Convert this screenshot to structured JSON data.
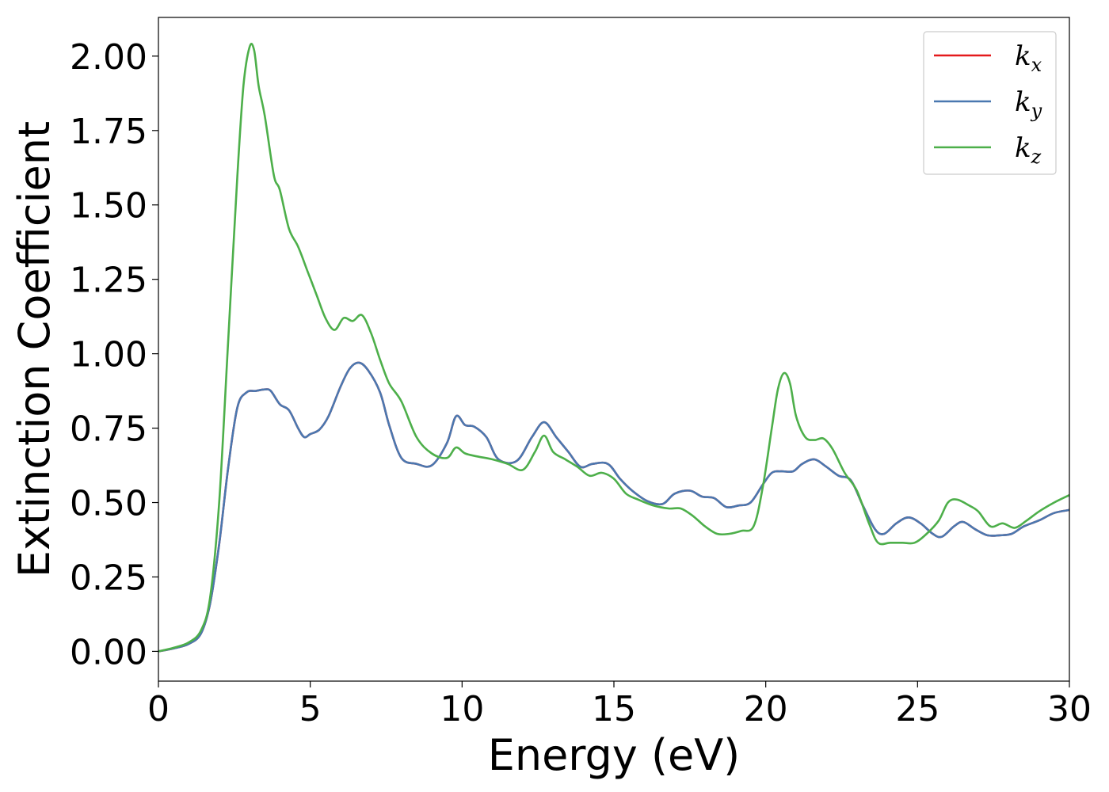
{
  "chart_data": {
    "type": "line",
    "xlabel": "Energy (eV)",
    "ylabel": "Extinction Coefficient",
    "xlim": [
      0,
      30
    ],
    "ylim": [
      -0.1,
      2.13
    ],
    "x_ticks": [
      0,
      5,
      10,
      15,
      20,
      25,
      30
    ],
    "x_tick_labels": [
      "0",
      "5",
      "10",
      "15",
      "20",
      "25",
      "30"
    ],
    "y_ticks": [
      0.0,
      0.25,
      0.5,
      0.75,
      1.0,
      1.25,
      1.5,
      1.75,
      2.0
    ],
    "y_tick_labels": [
      "0.00",
      "0.25",
      "0.50",
      "0.75",
      "1.00",
      "1.25",
      "1.50",
      "1.75",
      "2.00"
    ],
    "grid": false,
    "legend": {
      "position": "top-right",
      "entries": [
        {
          "base": "k",
          "sub": "x",
          "color": "#e41a1c"
        },
        {
          "base": "k",
          "sub": "y",
          "color": "#4a78b0"
        },
        {
          "base": "k",
          "sub": "z",
          "color": "#4daf4a"
        }
      ]
    },
    "series": [
      {
        "name": "k_x",
        "color": "#e41a1c",
        "x": [
          0,
          0.5,
          1.0,
          1.4,
          1.7,
          2.0,
          2.3,
          2.6,
          2.9,
          3.2,
          3.5,
          3.7,
          4.0,
          4.3,
          4.6,
          4.8,
          5.0,
          5.3,
          5.6,
          6.0,
          6.3,
          6.6,
          6.9,
          7.3,
          7.6,
          8.0,
          8.5,
          9.0,
          9.5,
          9.8,
          10.1,
          10.4,
          10.8,
          11.2,
          11.8,
          12.3,
          12.7,
          13.1,
          13.5,
          13.9,
          14.3,
          14.8,
          15.2,
          15.6,
          16.1,
          16.6,
          17.0,
          17.5,
          17.9,
          18.3,
          18.7,
          19.1,
          19.5,
          19.9,
          20.2,
          20.5,
          20.9,
          21.2,
          21.6,
          22.0,
          22.4,
          22.8,
          23.2,
          23.6,
          23.9,
          24.3,
          24.7,
          25.1,
          25.5,
          25.8,
          26.2,
          26.5,
          26.9,
          27.3,
          27.7,
          28.1,
          28.5,
          29.0,
          29.5,
          30.0
        ],
        "y": [
          0.0,
          0.01,
          0.025,
          0.06,
          0.16,
          0.36,
          0.62,
          0.82,
          0.87,
          0.875,
          0.88,
          0.875,
          0.83,
          0.81,
          0.75,
          0.72,
          0.73,
          0.745,
          0.79,
          0.89,
          0.95,
          0.97,
          0.945,
          0.87,
          0.76,
          0.65,
          0.63,
          0.625,
          0.7,
          0.79,
          0.76,
          0.755,
          0.72,
          0.645,
          0.64,
          0.72,
          0.77,
          0.72,
          0.67,
          0.62,
          0.63,
          0.63,
          0.58,
          0.54,
          0.505,
          0.495,
          0.53,
          0.54,
          0.52,
          0.515,
          0.485,
          0.49,
          0.5,
          0.56,
          0.6,
          0.605,
          0.605,
          0.63,
          0.645,
          0.62,
          0.59,
          0.575,
          0.49,
          0.41,
          0.395,
          0.43,
          0.45,
          0.43,
          0.395,
          0.385,
          0.42,
          0.435,
          0.41,
          0.39,
          0.39,
          0.395,
          0.42,
          0.44,
          0.465,
          0.475
        ]
      },
      {
        "name": "k_y",
        "color": "#4a78b0",
        "x": [
          0,
          0.5,
          1.0,
          1.4,
          1.7,
          2.0,
          2.3,
          2.6,
          2.9,
          3.2,
          3.5,
          3.7,
          4.0,
          4.3,
          4.6,
          4.8,
          5.0,
          5.3,
          5.6,
          6.0,
          6.3,
          6.6,
          6.9,
          7.3,
          7.6,
          8.0,
          8.5,
          9.0,
          9.5,
          9.8,
          10.1,
          10.4,
          10.8,
          11.2,
          11.8,
          12.3,
          12.7,
          13.1,
          13.5,
          13.9,
          14.3,
          14.8,
          15.2,
          15.6,
          16.1,
          16.6,
          17.0,
          17.5,
          17.9,
          18.3,
          18.7,
          19.1,
          19.5,
          19.9,
          20.2,
          20.5,
          20.9,
          21.2,
          21.6,
          22.0,
          22.4,
          22.8,
          23.2,
          23.6,
          23.9,
          24.3,
          24.7,
          25.1,
          25.5,
          25.8,
          26.2,
          26.5,
          26.9,
          27.3,
          27.7,
          28.1,
          28.5,
          29.0,
          29.5,
          30.0
        ],
        "y": [
          0.0,
          0.01,
          0.025,
          0.06,
          0.16,
          0.36,
          0.62,
          0.82,
          0.87,
          0.875,
          0.88,
          0.875,
          0.83,
          0.81,
          0.75,
          0.72,
          0.73,
          0.745,
          0.79,
          0.89,
          0.95,
          0.97,
          0.945,
          0.87,
          0.76,
          0.65,
          0.63,
          0.625,
          0.7,
          0.79,
          0.76,
          0.755,
          0.72,
          0.645,
          0.64,
          0.72,
          0.77,
          0.72,
          0.67,
          0.62,
          0.63,
          0.63,
          0.58,
          0.54,
          0.505,
          0.495,
          0.53,
          0.54,
          0.52,
          0.515,
          0.485,
          0.49,
          0.5,
          0.56,
          0.6,
          0.605,
          0.605,
          0.63,
          0.645,
          0.62,
          0.59,
          0.575,
          0.49,
          0.41,
          0.395,
          0.43,
          0.45,
          0.43,
          0.395,
          0.385,
          0.42,
          0.435,
          0.41,
          0.39,
          0.39,
          0.395,
          0.42,
          0.44,
          0.465,
          0.475
        ]
      },
      {
        "name": "k_z",
        "color": "#4daf4a",
        "x": [
          0,
          0.5,
          1.0,
          1.4,
          1.7,
          2.0,
          2.3,
          2.6,
          2.8,
          3.0,
          3.15,
          3.3,
          3.5,
          3.8,
          4.0,
          4.3,
          4.6,
          4.9,
          5.2,
          5.5,
          5.8,
          6.1,
          6.4,
          6.7,
          7.0,
          7.3,
          7.6,
          8.0,
          8.5,
          9.0,
          9.5,
          9.8,
          10.1,
          10.5,
          11.0,
          11.5,
          12.0,
          12.4,
          12.7,
          13.0,
          13.4,
          13.8,
          14.2,
          14.6,
          15.0,
          15.4,
          15.8,
          16.3,
          16.8,
          17.2,
          17.6,
          18.0,
          18.4,
          18.8,
          19.2,
          19.6,
          19.9,
          20.2,
          20.4,
          20.6,
          20.8,
          21.0,
          21.3,
          21.6,
          21.9,
          22.2,
          22.6,
          23.0,
          23.4,
          23.7,
          24.1,
          24.5,
          24.9,
          25.3,
          25.7,
          26.0,
          26.3,
          26.7,
          27.0,
          27.4,
          27.8,
          28.2,
          28.6,
          29.0,
          29.5,
          30.0
        ],
        "y": [
          0.0,
          0.012,
          0.03,
          0.07,
          0.18,
          0.5,
          1.05,
          1.6,
          1.9,
          2.03,
          2.02,
          1.9,
          1.8,
          1.6,
          1.55,
          1.42,
          1.36,
          1.28,
          1.2,
          1.12,
          1.08,
          1.12,
          1.11,
          1.13,
          1.07,
          0.98,
          0.9,
          0.84,
          0.72,
          0.665,
          0.65,
          0.685,
          0.665,
          0.655,
          0.645,
          0.63,
          0.61,
          0.67,
          0.725,
          0.67,
          0.645,
          0.62,
          0.59,
          0.6,
          0.58,
          0.53,
          0.51,
          0.49,
          0.48,
          0.48,
          0.455,
          0.42,
          0.395,
          0.395,
          0.405,
          0.42,
          0.55,
          0.75,
          0.88,
          0.935,
          0.9,
          0.79,
          0.72,
          0.71,
          0.715,
          0.68,
          0.6,
          0.54,
          0.43,
          0.365,
          0.365,
          0.365,
          0.365,
          0.395,
          0.44,
          0.5,
          0.51,
          0.49,
          0.47,
          0.42,
          0.43,
          0.415,
          0.44,
          0.47,
          0.5,
          0.525
        ]
      }
    ]
  }
}
